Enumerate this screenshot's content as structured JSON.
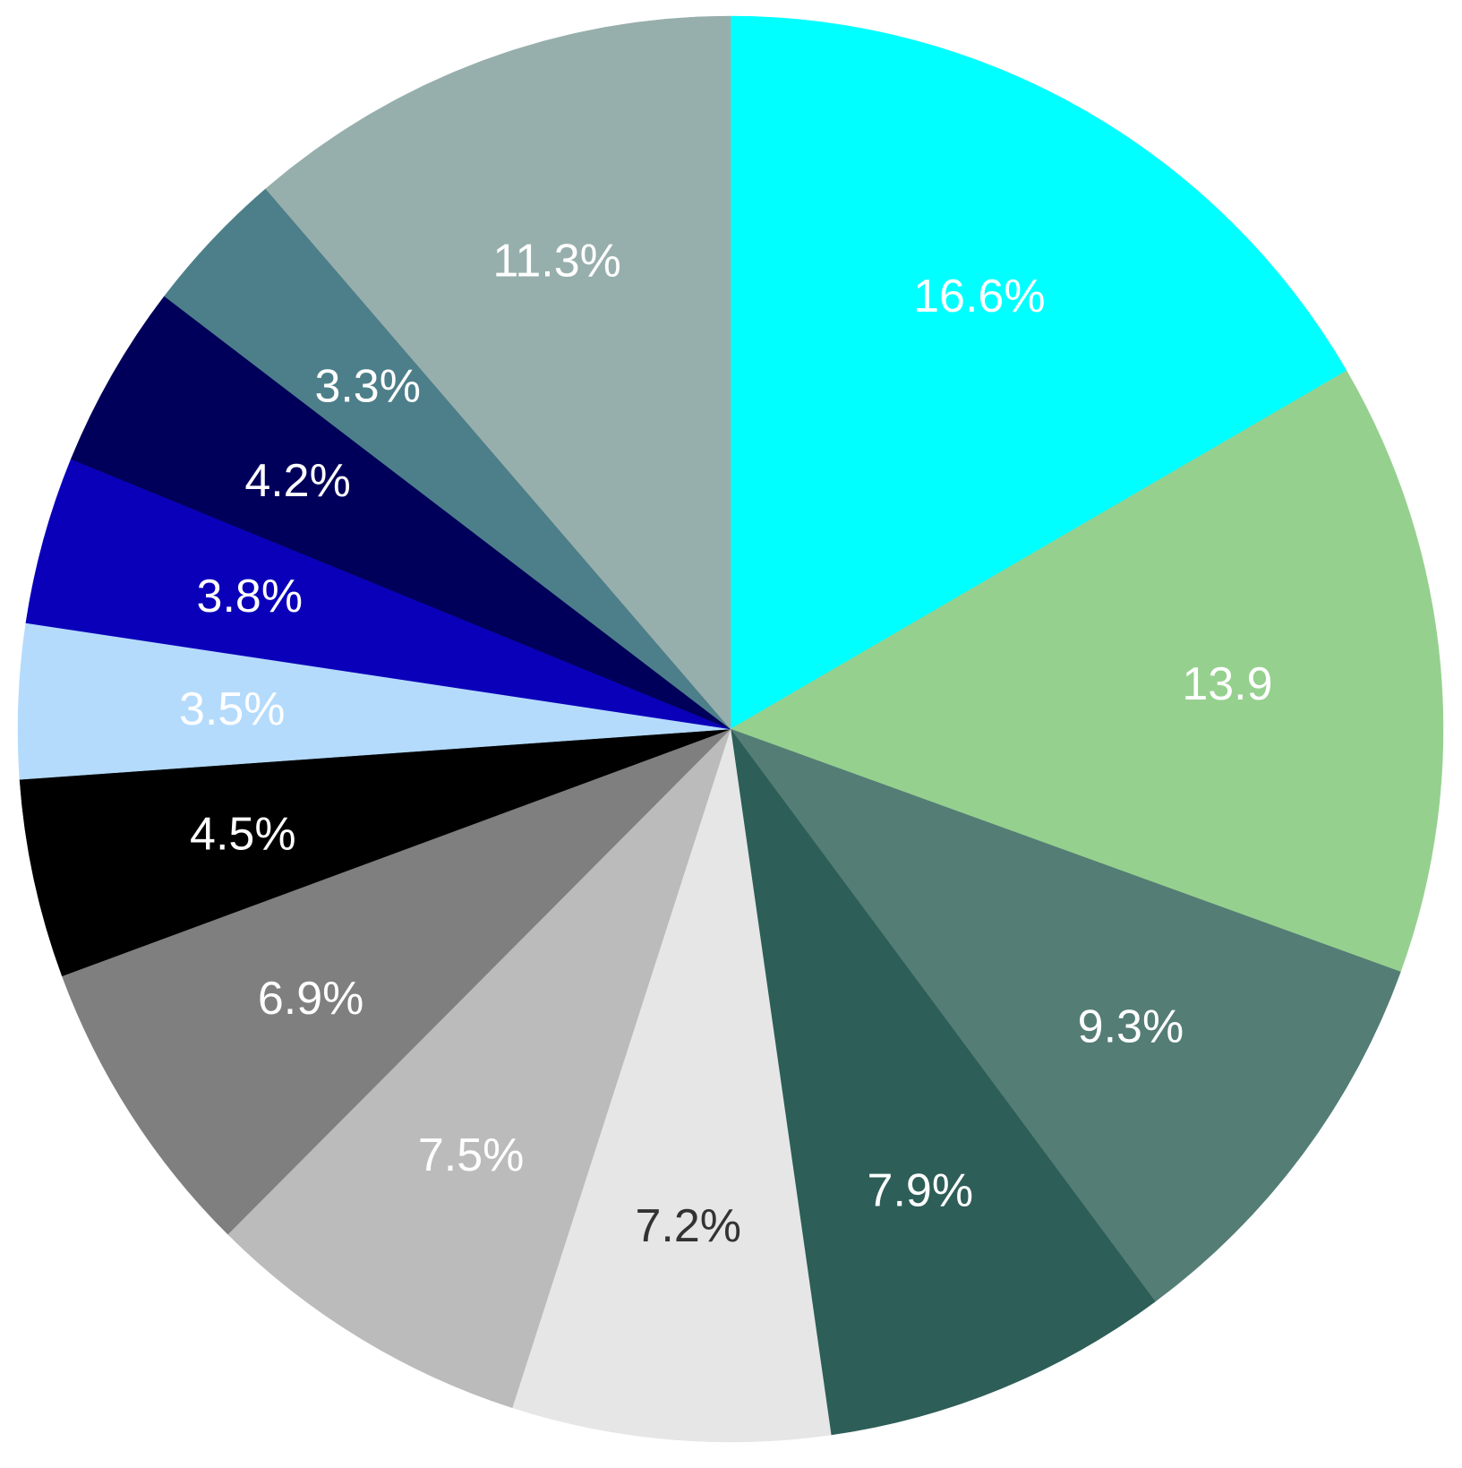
{
  "chart_data": {
    "type": "pie",
    "start_angle_deg": 0,
    "direction": "clockwise",
    "legend": "none",
    "slices": [
      {
        "value": 16.6,
        "label": "16.6%",
        "color": "#00FFFF",
        "label_color": "#FFFFFF"
      },
      {
        "value": 13.9,
        "label": "13.9",
        "color": "#96D08F",
        "label_color": "#FFFFFF"
      },
      {
        "value": 9.3,
        "label": "9.3%",
        "color": "#547D76",
        "label_color": "#FFFFFF"
      },
      {
        "value": 7.9,
        "label": "7.9%",
        "color": "#2D5E58",
        "label_color": "#FFFFFF"
      },
      {
        "value": 7.2,
        "label": "7.2%",
        "color": "#E6E6E6",
        "label_color": "#333333"
      },
      {
        "value": 7.5,
        "label": "7.5%",
        "color": "#BBBBBB",
        "label_color": "#FFFFFF"
      },
      {
        "value": 6.9,
        "label": "6.9%",
        "color": "#7F7F7F",
        "label_color": "#FFFFFF"
      },
      {
        "value": 4.5,
        "label": "4.5%",
        "color": "#000000",
        "label_color": "#FFFFFF"
      },
      {
        "value": 3.5,
        "label": "3.5%",
        "color": "#B4DBFC",
        "label_color": "#FFFFFF"
      },
      {
        "value": 3.8,
        "label": "3.8%",
        "color": "#0A00BA",
        "label_color": "#FFFFFF"
      },
      {
        "value": 4.2,
        "label": "4.2%",
        "color": "#00005A",
        "label_color": "#FFFFFF"
      },
      {
        "value": 3.3,
        "label": "3.3%",
        "color": "#4D7F8A",
        "label_color": "#FFFFFF"
      },
      {
        "value": 11.3,
        "label": "11.3%",
        "color": "#97AFAC",
        "label_color": "#FFFFFF"
      }
    ]
  }
}
